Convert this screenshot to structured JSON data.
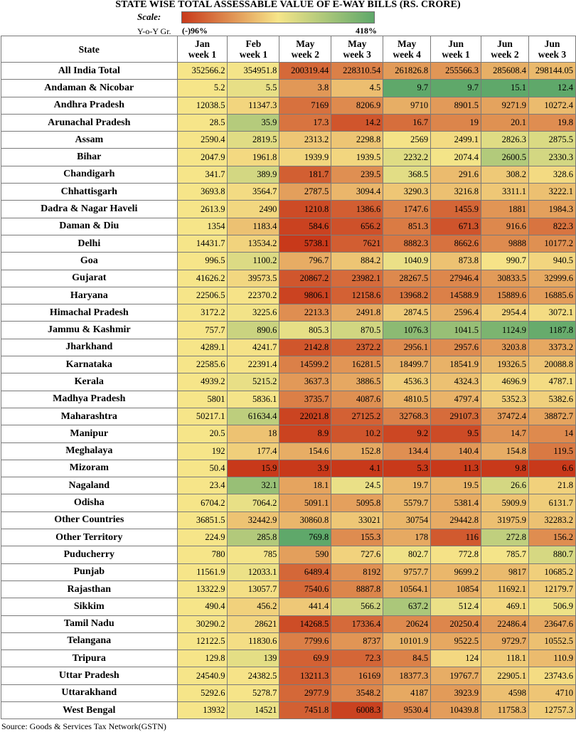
{
  "title": "STATE WISE TOTAL ASSESSABLE VALUE OF E-WAY BILLS (RS. CRORE)",
  "scale": {
    "label": "Scale:",
    "metric_label": "Y-o-Y Gr.",
    "min_label": "(-)96%",
    "max_label": "418%",
    "colors": [
      "#c8391a",
      "#f6e589",
      "#5fa86a"
    ]
  },
  "source": "Source: Goods & Services Tax Network(GSTN)",
  "chart_data": {
    "type": "table",
    "title": "STATE WISE TOTAL ASSESSABLE VALUE OF E-WAY BILLS (RS. CRORE)",
    "row_header": "State",
    "columns": [
      {
        "line1": "Jan",
        "line2": "week 1"
      },
      {
        "line1": "Feb",
        "line2": "week 1"
      },
      {
        "line1": "May",
        "line2": "week 2"
      },
      {
        "line1": "May",
        "line2": "week 3"
      },
      {
        "line1": "May",
        "line2": "week 4"
      },
      {
        "line1": "Jun",
        "line2": "week 1"
      },
      {
        "line1": "Jun",
        "line2": "week 2"
      },
      {
        "line1": "Jun",
        "line2": "week 3"
      }
    ],
    "rows": [
      {
        "state": "All India Total",
        "values": [
          "352566.2",
          "354951.8",
          "200319.44",
          "228310.54",
          "261826.8",
          "255566.3",
          "285608.4",
          "298144.05"
        ]
      },
      {
        "state": "Andaman & Nicobar",
        "values": [
          "5.2",
          "5.5",
          "3.8",
          "4.5",
          "9.7",
          "9.7",
          "15.1",
          "12.4"
        ]
      },
      {
        "state": "Andhra Pradesh",
        "values": [
          "12038.5",
          "11347.3",
          "7169",
          "8206.9",
          "9710",
          "8901.5",
          "9271.9",
          "10272.4"
        ]
      },
      {
        "state": "Arunachal Pradesh",
        "values": [
          "28.5",
          "35.9",
          "17.3",
          "14.2",
          "16.7",
          "19",
          "20.1",
          "19.8"
        ]
      },
      {
        "state": "Assam",
        "values": [
          "2590.4",
          "2819.5",
          "2313.2",
          "2298.8",
          "2569",
          "2499.1",
          "2826.3",
          "2875.5"
        ]
      },
      {
        "state": "Bihar",
        "values": [
          "2047.9",
          "1961.8",
          "1939.9",
          "1939.5",
          "2232.2",
          "2074.4",
          "2600.5",
          "2330.3"
        ]
      },
      {
        "state": "Chandigarh",
        "values": [
          "341.7",
          "389.9",
          "181.7",
          "239.5",
          "368.5",
          "291.6",
          "308.2",
          "328.6"
        ]
      },
      {
        "state": "Chhattisgarh",
        "values": [
          "3693.8",
          "3564.7",
          "2787.5",
          "3094.4",
          "3290.3",
          "3216.8",
          "3311.1",
          "3222.1"
        ]
      },
      {
        "state": "Dadra & Nagar Haveli",
        "values": [
          "2613.9",
          "2490",
          "1210.8",
          "1386.6",
          "1747.6",
          "1455.9",
          "1881",
          "1984.3"
        ]
      },
      {
        "state": "Daman & Diu",
        "values": [
          "1354",
          "1183.4",
          "584.6",
          "656.2",
          "851.3",
          "671.3",
          "916.6",
          "822.3"
        ]
      },
      {
        "state": "Delhi",
        "values": [
          "14431.7",
          "13534.2",
          "5738.1",
          "7621",
          "8882.3",
          "8662.6",
          "9888",
          "10177.2"
        ]
      },
      {
        "state": "Goa",
        "values": [
          "996.5",
          "1100.2",
          "796.7",
          "884.2",
          "1040.9",
          "873.8",
          "990.7",
          "940.5"
        ]
      },
      {
        "state": "Gujarat",
        "values": [
          "41626.2",
          "39573.5",
          "20867.2",
          "23982.1",
          "28267.5",
          "27946.4",
          "30833.5",
          "32999.6"
        ]
      },
      {
        "state": "Haryana",
        "values": [
          "22506.5",
          "22370.2",
          "9806.1",
          "12158.6",
          "13968.2",
          "14588.9",
          "15889.6",
          "16885.6"
        ]
      },
      {
        "state": "Himachal Pradesh",
        "values": [
          "3172.2",
          "3225.6",
          "2213.3",
          "2491.8",
          "2874.5",
          "2596.4",
          "2954.4",
          "3072.1"
        ]
      },
      {
        "state": "Jammu & Kashmir",
        "values": [
          "757.7",
          "890.6",
          "805.3",
          "870.5",
          "1076.3",
          "1041.5",
          "1124.9",
          "1187.8"
        ]
      },
      {
        "state": "Jharkhand",
        "values": [
          "4289.1",
          "4241.7",
          "2142.8",
          "2372.2",
          "2956.1",
          "2957.6",
          "3203.8",
          "3373.2"
        ]
      },
      {
        "state": "Karnataka",
        "values": [
          "22585.6",
          "22391.4",
          "14599.2",
          "16281.5",
          "18499.7",
          "18541.9",
          "19326.5",
          "20088.8"
        ]
      },
      {
        "state": "Kerala",
        "values": [
          "4939.2",
          "5215.2",
          "3637.3",
          "3886.5",
          "4536.3",
          "4324.3",
          "4696.9",
          "4787.1"
        ]
      },
      {
        "state": "Madhya Pradesh",
        "values": [
          "5801",
          "5836.1",
          "3735.7",
          "4087.6",
          "4810.5",
          "4797.4",
          "5352.3",
          "5382.6"
        ]
      },
      {
        "state": "Maharashtra",
        "values": [
          "50217.1",
          "61634.4",
          "22021.8",
          "27125.2",
          "32768.3",
          "29107.3",
          "37472.4",
          "38872.7"
        ]
      },
      {
        "state": "Manipur",
        "values": [
          "20.5",
          "18",
          "8.9",
          "10.2",
          "9.2",
          "9.5",
          "14.7",
          "14"
        ]
      },
      {
        "state": "Meghalaya",
        "values": [
          "192",
          "177.4",
          "154.6",
          "152.8",
          "134.4",
          "140.4",
          "154.8",
          "119.5"
        ]
      },
      {
        "state": "Mizoram",
        "values": [
          "50.4",
          "15.9",
          "3.9",
          "4.1",
          "5.3",
          "11.3",
          "9.8",
          "6.6"
        ]
      },
      {
        "state": "Nagaland",
        "values": [
          "23.4",
          "32.1",
          "18.1",
          "24.5",
          "19.7",
          "19.5",
          "26.6",
          "21.8"
        ]
      },
      {
        "state": "Odisha",
        "values": [
          "6704.2",
          "7064.2",
          "5091.1",
          "5095.8",
          "5579.7",
          "5381.4",
          "5909.9",
          "6131.7"
        ]
      },
      {
        "state": "Other Countries",
        "values": [
          "36851.5",
          "32442.9",
          "30860.8",
          "33021",
          "30754",
          "29442.8",
          "31975.9",
          "32283.2"
        ]
      },
      {
        "state": "Other Territory",
        "values": [
          "224.9",
          "285.8",
          "769.8",
          "155.3",
          "178",
          "116",
          "272.8",
          "156.2"
        ]
      },
      {
        "state": "Puducherry",
        "values": [
          "780",
          "785",
          "590",
          "727.6",
          "802.7",
          "772.8",
          "785.7",
          "880.7"
        ]
      },
      {
        "state": "Punjab",
        "values": [
          "11561.9",
          "12033.1",
          "6489.4",
          "8192",
          "9757.7",
          "9699.2",
          "9817",
          "10685.2"
        ]
      },
      {
        "state": "Rajasthan",
        "values": [
          "13322.9",
          "13057.7",
          "7540.6",
          "8887.8",
          "10564.1",
          "10854",
          "11692.1",
          "12179.7"
        ]
      },
      {
        "state": "Sikkim",
        "values": [
          "490.4",
          "456.2",
          "441.4",
          "566.2",
          "637.2",
          "512.4",
          "469.1",
          "506.9"
        ]
      },
      {
        "state": "Tamil Nadu",
        "values": [
          "30290.2",
          "28621",
          "14268.5",
          "17336.4",
          "20624",
          "20250.4",
          "22486.4",
          "23647.6"
        ]
      },
      {
        "state": "Telangana",
        "values": [
          "12122.5",
          "11830.6",
          "7799.6",
          "8737",
          "10101.9",
          "9522.5",
          "9729.7",
          "10552.5"
        ]
      },
      {
        "state": "Tripura",
        "values": [
          "129.8",
          "139",
          "69.9",
          "72.3",
          "84.5",
          "124",
          "118.1",
          "110.9"
        ]
      },
      {
        "state": "Uttar Pradesh",
        "values": [
          "24540.9",
          "24382.5",
          "13211.3",
          "16169",
          "18377.3",
          "19767.7",
          "22905.1",
          "23743.6"
        ]
      },
      {
        "state": "Uttarakhand",
        "values": [
          "5292.6",
          "5278.7",
          "2977.9",
          "3548.2",
          "4187",
          "3923.9",
          "4598",
          "4710"
        ]
      },
      {
        "state": "West Bengal",
        "values": [
          "13932",
          "14521",
          "7451.8",
          "6008.3",
          "9530.4",
          "10439.8",
          "11758.3",
          "12757.3"
        ]
      }
    ]
  }
}
